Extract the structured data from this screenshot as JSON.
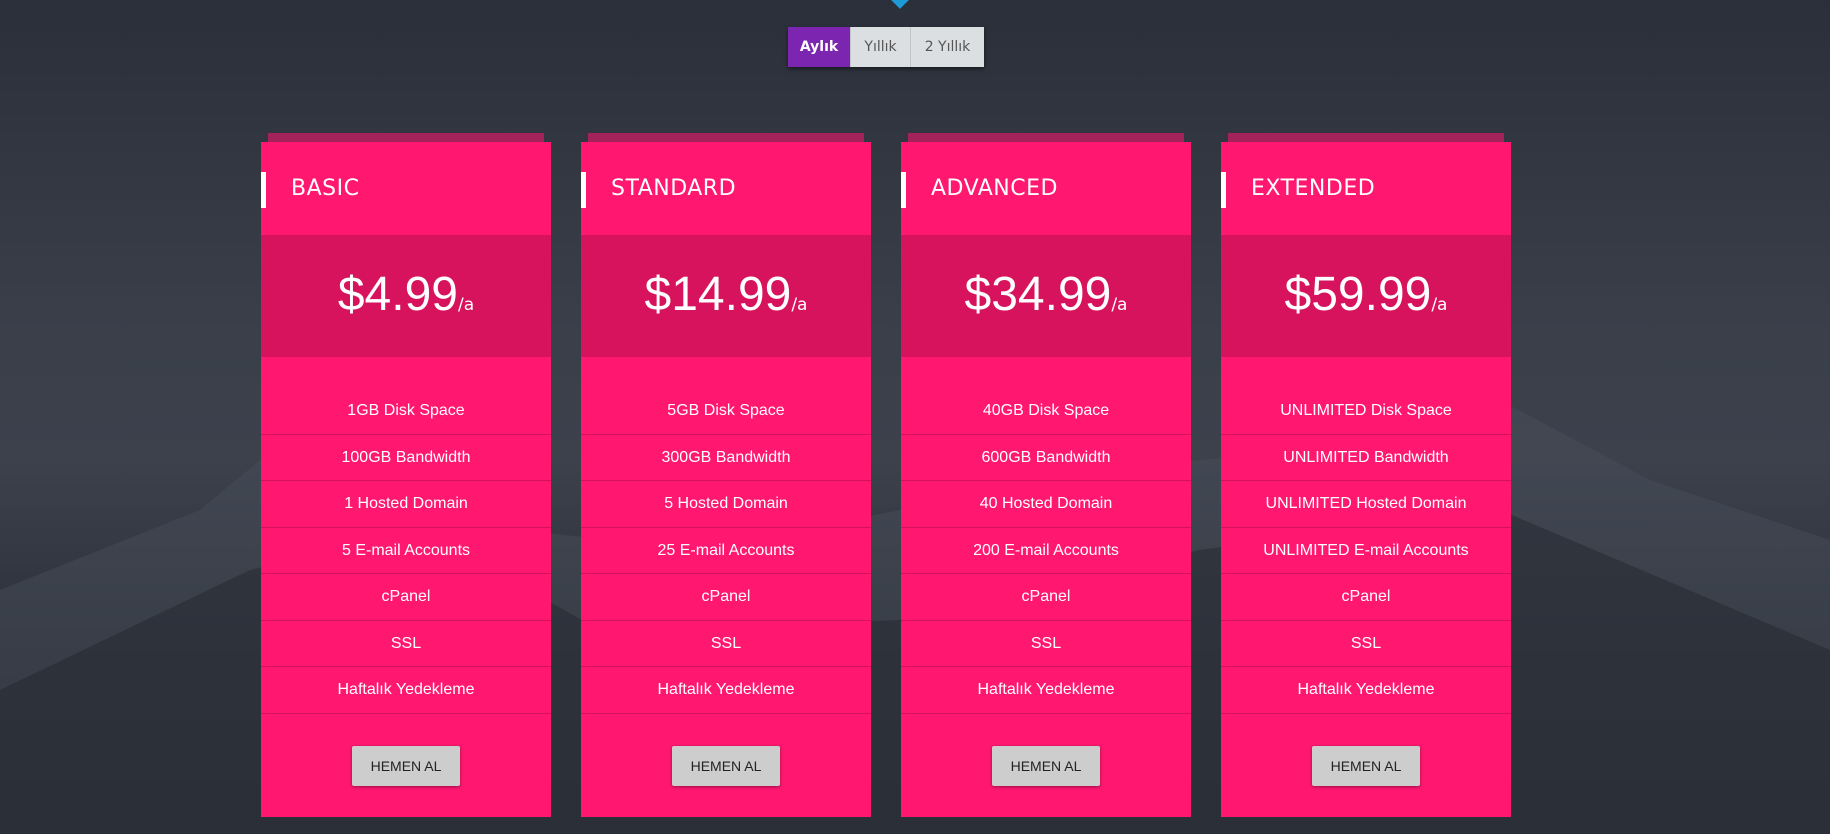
{
  "billing_toggle": {
    "options": [
      "Aylık",
      "Yıllık",
      "2 Yıllık"
    ],
    "selected": "Aylık",
    "accent": "#7b25b0"
  },
  "colors": {
    "card": "#ff1770",
    "price_band": "#d6135c"
  },
  "plans": [
    {
      "name": "BASIC",
      "price": "$4.99",
      "period": "/a",
      "features": [
        "1GB Disk Space",
        "100GB Bandwidth",
        "1 Hosted Domain",
        "5 E-mail Accounts",
        "cPanel",
        "SSL",
        "Haftalık Yedekleme"
      ],
      "button": "HEMEN AL"
    },
    {
      "name": "STANDARD",
      "price": "$14.99",
      "period": "/a",
      "features": [
        "5GB Disk Space",
        "300GB Bandwidth",
        "5 Hosted Domain",
        "25 E-mail Accounts",
        "cPanel",
        "SSL",
        "Haftalık Yedekleme"
      ],
      "button": "HEMEN AL"
    },
    {
      "name": "ADVANCED",
      "price": "$34.99",
      "period": "/a",
      "features": [
        "40GB Disk Space",
        "600GB Bandwidth",
        "40 Hosted Domain",
        "200 E-mail Accounts",
        "cPanel",
        "SSL",
        "Haftalık Yedekleme"
      ],
      "button": "HEMEN AL"
    },
    {
      "name": "EXTENDED",
      "price": "$59.99",
      "period": "/a",
      "features": [
        "UNLIMITED Disk Space",
        "UNLIMITED Bandwidth",
        "UNLIMITED Hosted Domain",
        "UNLIMITED E-mail Accounts",
        "cPanel",
        "SSL",
        "Haftalık Yedekleme"
      ],
      "button": "HEMEN AL"
    }
  ]
}
